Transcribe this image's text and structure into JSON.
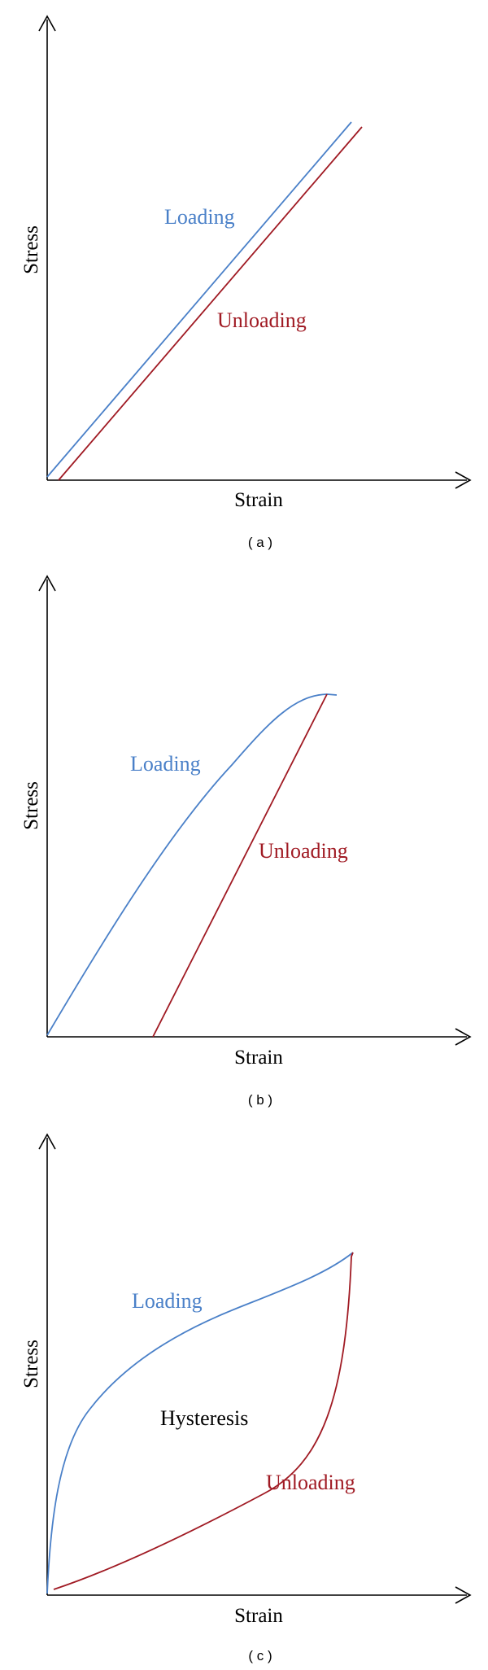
{
  "colors": {
    "loading": "#4a80c8",
    "unloading": "#a01a23",
    "axes": "#000000"
  },
  "panels": [
    {
      "id": "a",
      "caption": "( a )",
      "xlabel": "Strain",
      "ylabel": "Stress",
      "loading_label": "Loading",
      "unloading_label": "Unloading"
    },
    {
      "id": "b",
      "caption": "( b )",
      "xlabel": "Strain",
      "ylabel": "Stress",
      "loading_label": "Loading",
      "unloading_label": "Unloading"
    },
    {
      "id": "c",
      "caption": "( c )",
      "xlabel": "Strain",
      "ylabel": "Stress",
      "loading_label": "Loading",
      "unloading_label": "Unloading",
      "region_label": "Hysteresis"
    }
  ]
}
